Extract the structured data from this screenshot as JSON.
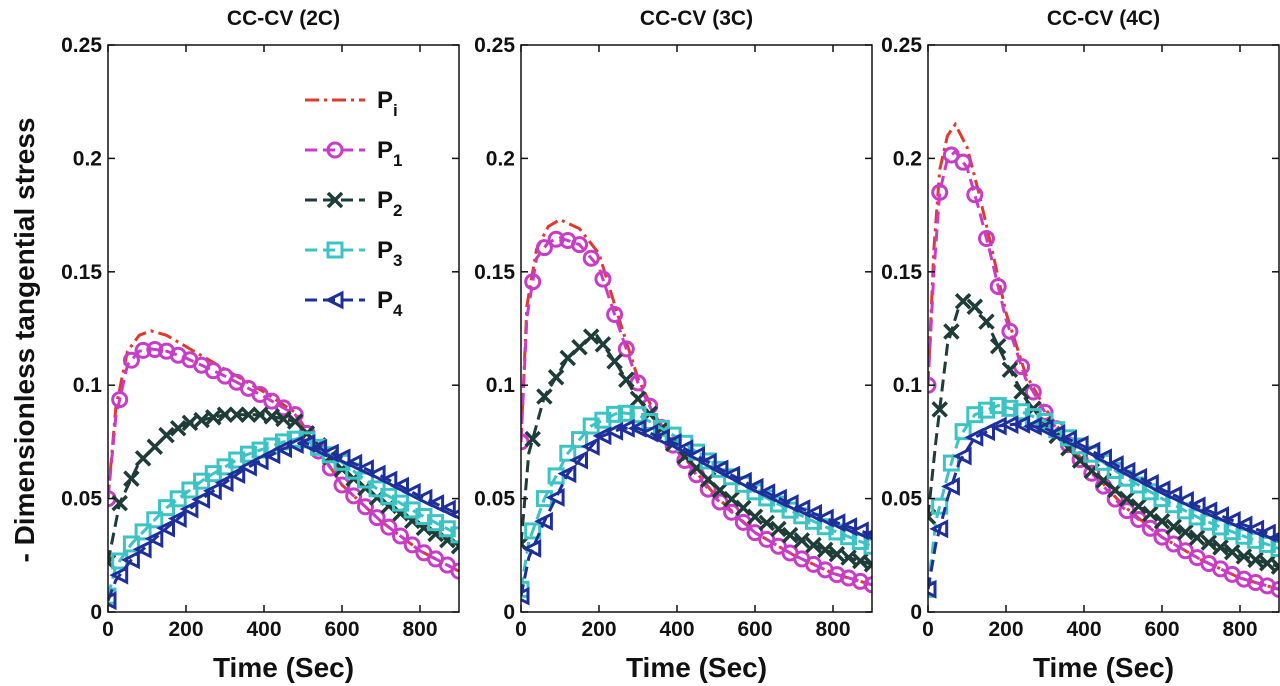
{
  "figure": {
    "ylabel": "- Dimensionless tangential stress"
  },
  "legend": [
    {
      "id": "Pi",
      "base": "P",
      "sub": "i",
      "color": "#e03a2e",
      "marker": "none",
      "dash": "14,5,3,5"
    },
    {
      "id": "P1",
      "base": "P",
      "sub": "1",
      "color": "#c83cc8",
      "marker": "circle",
      "dash": "12,6"
    },
    {
      "id": "P2",
      "base": "P",
      "sub": "2",
      "color": "#1f3d38",
      "marker": "x",
      "dash": "12,6"
    },
    {
      "id": "P3",
      "base": "P",
      "sub": "3",
      "color": "#3cc4c4",
      "marker": "square",
      "dash": "12,6"
    },
    {
      "id": "P4",
      "base": "P",
      "sub": "4",
      "color": "#1e2f9c",
      "marker": "triangle",
      "dash": "12,6"
    }
  ],
  "chart_data": [
    {
      "type": "line",
      "title": "CC-CV (2C)",
      "xlabel": "Time (Sec)",
      "ylabel": "- Dimensionless tangential stress",
      "xlim": [
        0,
        900
      ],
      "ylim": [
        0,
        0.25
      ],
      "xticks": [
        0,
        200,
        400,
        600,
        800
      ],
      "xticklabels": [
        "0",
        "200",
        "400",
        "600",
        "800"
      ],
      "yticks": [
        0,
        0.05,
        0.1,
        0.15,
        0.2,
        0.25
      ],
      "yticklabels": [
        "0",
        "0.05",
        "0.1",
        "0.15",
        "0.2",
        "0.25"
      ],
      "series": [
        {
          "name": "Pi",
          "x": [
            0,
            20,
            50,
            80,
            110,
            150,
            200,
            300,
            400,
            480,
            520,
            600,
            700,
            800,
            900
          ],
          "y": [
            0.05,
            0.09,
            0.115,
            0.122,
            0.124,
            0.122,
            0.117,
            0.107,
            0.097,
            0.088,
            0.077,
            0.056,
            0.04,
            0.027,
            0.018
          ]
        },
        {
          "name": "P1",
          "x": [
            0,
            20,
            50,
            80,
            110,
            150,
            200,
            300,
            400,
            480,
            520,
            600,
            700,
            800,
            900
          ],
          "y": [
            0.05,
            0.086,
            0.109,
            0.115,
            0.116,
            0.115,
            0.112,
            0.104,
            0.095,
            0.087,
            0.076,
            0.056,
            0.04,
            0.027,
            0.018
          ]
        },
        {
          "name": "P2",
          "x": [
            0,
            30,
            80,
            150,
            200,
            300,
            400,
            480,
            520,
            600,
            700,
            800,
            900
          ],
          "y": [
            0.022,
            0.048,
            0.066,
            0.078,
            0.083,
            0.087,
            0.087,
            0.084,
            0.077,
            0.063,
            0.049,
            0.038,
            0.029
          ]
        },
        {
          "name": "P3",
          "x": [
            0,
            20,
            60,
            150,
            250,
            350,
            450,
            500,
            600,
            700,
            800,
            900
          ],
          "y": [
            0.007,
            0.02,
            0.03,
            0.046,
            0.059,
            0.069,
            0.075,
            0.077,
            0.066,
            0.053,
            0.043,
            0.034
          ]
        },
        {
          "name": "P4",
          "x": [
            0,
            20,
            60,
            150,
            250,
            350,
            450,
            500,
            600,
            700,
            800,
            900
          ],
          "y": [
            0.005,
            0.014,
            0.023,
            0.037,
            0.051,
            0.063,
            0.072,
            0.075,
            0.068,
            0.06,
            0.051,
            0.043
          ]
        }
      ]
    },
    {
      "type": "line",
      "title": "CC-CV (3C)",
      "xlabel": "Time (Sec)",
      "xlim": [
        0,
        900
      ],
      "ylim": [
        0,
        0.25
      ],
      "xticks": [
        0,
        200,
        400,
        600,
        800
      ],
      "xticklabels": [
        "0",
        "200",
        "400",
        "600",
        "800"
      ],
      "yticks": [
        0,
        0.05,
        0.1,
        0.15,
        0.2,
        0.25
      ],
      "yticklabels": [
        "0",
        "0.05",
        "0.1",
        "0.15",
        "0.2",
        "0.25"
      ],
      "series": [
        {
          "name": "Pi",
          "x": [
            0,
            15,
            40,
            70,
            100,
            150,
            200,
            250,
            300,
            350,
            400,
            500,
            600,
            700,
            800,
            900
          ],
          "y": [
            0.075,
            0.135,
            0.16,
            0.17,
            0.173,
            0.169,
            0.158,
            0.13,
            0.103,
            0.085,
            0.072,
            0.051,
            0.035,
            0.025,
            0.017,
            0.012
          ]
        },
        {
          "name": "P1",
          "x": [
            0,
            15,
            40,
            70,
            100,
            150,
            200,
            250,
            300,
            350,
            400,
            500,
            600,
            700,
            800,
            900
          ],
          "y": [
            0.075,
            0.13,
            0.156,
            0.163,
            0.165,
            0.162,
            0.152,
            0.126,
            0.101,
            0.084,
            0.071,
            0.05,
            0.035,
            0.025,
            0.017,
            0.012
          ]
        },
        {
          "name": "P2",
          "x": [
            0,
            20,
            60,
            120,
            190,
            250,
            300,
            400,
            500,
            600,
            700,
            800,
            900
          ],
          "y": [
            0.03,
            0.07,
            0.095,
            0.112,
            0.123,
            0.108,
            0.094,
            0.072,
            0.055,
            0.042,
            0.033,
            0.026,
            0.021
          ]
        },
        {
          "name": "P3",
          "x": [
            0,
            20,
            60,
            120,
            180,
            250,
            300,
            400,
            500,
            600,
            700,
            800,
            900
          ],
          "y": [
            0.01,
            0.031,
            0.05,
            0.07,
            0.082,
            0.088,
            0.087,
            0.077,
            0.064,
            0.053,
            0.044,
            0.036,
            0.029
          ]
        },
        {
          "name": "P4",
          "x": [
            0,
            20,
            60,
            120,
            200,
            260,
            300,
            400,
            500,
            600,
            700,
            800,
            900
          ],
          "y": [
            0.007,
            0.024,
            0.04,
            0.061,
            0.077,
            0.081,
            0.081,
            0.074,
            0.064,
            0.055,
            0.047,
            0.04,
            0.034
          ]
        }
      ]
    },
    {
      "type": "line",
      "title": "CC-CV (4C)",
      "xlabel": "Time (Sec)",
      "xlim": [
        0,
        900
      ],
      "ylim": [
        0,
        0.25
      ],
      "xticks": [
        0,
        200,
        400,
        600,
        800
      ],
      "xticklabels": [
        "0",
        "200",
        "400",
        "600",
        "800"
      ],
      "yticks": [
        0,
        0.05,
        0.1,
        0.15,
        0.2,
        0.25
      ],
      "yticklabels": [
        "0",
        "0.05",
        "0.1",
        "0.15",
        "0.2",
        "0.25"
      ],
      "series": [
        {
          "name": "Pi",
          "x": [
            0,
            15,
            30,
            50,
            70,
            100,
            130,
            160,
            200,
            250,
            300,
            350,
            400,
            500,
            600,
            700,
            800,
            900
          ],
          "y": [
            0.1,
            0.16,
            0.195,
            0.21,
            0.215,
            0.205,
            0.185,
            0.163,
            0.132,
            0.105,
            0.09,
            0.077,
            0.066,
            0.047,
            0.033,
            0.023,
            0.015,
            0.01
          ]
        },
        {
          "name": "P1",
          "x": [
            0,
            15,
            30,
            50,
            70,
            100,
            130,
            160,
            200,
            250,
            300,
            350,
            400,
            500,
            600,
            700,
            800,
            900
          ],
          "y": [
            0.1,
            0.15,
            0.185,
            0.2,
            0.203,
            0.196,
            0.178,
            0.158,
            0.129,
            0.103,
            0.088,
            0.076,
            0.065,
            0.046,
            0.033,
            0.023,
            0.015,
            0.01
          ]
        },
        {
          "name": "P2",
          "x": [
            0,
            20,
            50,
            80,
            100,
            150,
            200,
            250,
            300,
            400,
            500,
            600,
            700,
            800,
            900
          ],
          "y": [
            0.042,
            0.075,
            0.118,
            0.135,
            0.139,
            0.128,
            0.11,
            0.094,
            0.083,
            0.065,
            0.051,
            0.04,
            0.032,
            0.025,
            0.02
          ]
        },
        {
          "name": "P3",
          "x": [
            0,
            20,
            50,
            80,
            120,
            180,
            230,
            300,
            400,
            500,
            600,
            700,
            800,
            900
          ],
          "y": [
            0.01,
            0.04,
            0.06,
            0.077,
            0.087,
            0.091,
            0.089,
            0.084,
            0.072,
            0.06,
            0.05,
            0.041,
            0.034,
            0.028
          ]
        },
        {
          "name": "P4",
          "x": [
            0,
            20,
            50,
            80,
            120,
            180,
            230,
            300,
            400,
            500,
            600,
            700,
            800,
            900
          ],
          "y": [
            0.01,
            0.03,
            0.05,
            0.066,
            0.077,
            0.082,
            0.083,
            0.081,
            0.073,
            0.063,
            0.054,
            0.046,
            0.039,
            0.033
          ]
        }
      ]
    }
  ]
}
